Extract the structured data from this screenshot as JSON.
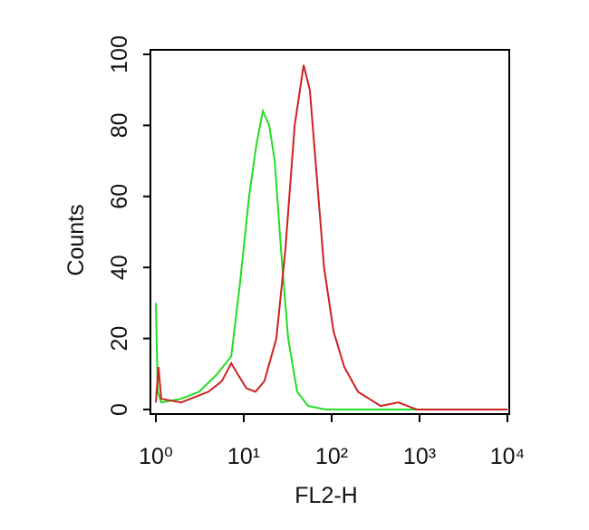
{
  "chart_data": {
    "type": "line",
    "xlabel": "FL2-H",
    "ylabel": "Counts",
    "xscale": "log",
    "xlim": [
      1,
      10000
    ],
    "xticks": [
      {
        "value": 1,
        "label": "10⁰"
      },
      {
        "value": 10,
        "label": "10¹"
      },
      {
        "value": 100,
        "label": "10²"
      },
      {
        "value": 1000,
        "label": "10³"
      },
      {
        "value": 10000,
        "label": "10⁴"
      }
    ],
    "ylim": [
      0,
      100
    ],
    "yticks": [
      0,
      20,
      40,
      60,
      80,
      100
    ],
    "series": [
      {
        "color": "#22dd22",
        "x": [
          1,
          1.05,
          1.15,
          1.94,
          3.1,
          5,
          7.2,
          9,
          11.5,
          14,
          16.5,
          19.5,
          22.5,
          26.5,
          32,
          40.5,
          54,
          86,
          10000
        ],
        "values": [
          30,
          5,
          2,
          3,
          5,
          10,
          15,
          35,
          60,
          75,
          84,
          80,
          70,
          45,
          20,
          5,
          1,
          0,
          0
        ]
      },
      {
        "color": "#cc2222",
        "x": [
          1,
          1.07,
          1.15,
          1.94,
          3.96,
          5.65,
          7.2,
          8.5,
          10.7,
          13.6,
          17.2,
          23.5,
          29.7,
          38,
          48,
          56.5,
          68,
          82,
          105,
          139,
          199,
          360,
          575,
          930,
          10000
        ],
        "values": [
          2,
          12,
          3,
          2,
          5,
          8,
          13,
          10,
          6,
          5,
          8,
          20,
          45,
          80,
          97,
          90,
          65,
          40,
          22,
          12,
          5,
          1,
          2,
          0,
          0
        ]
      }
    ]
  }
}
